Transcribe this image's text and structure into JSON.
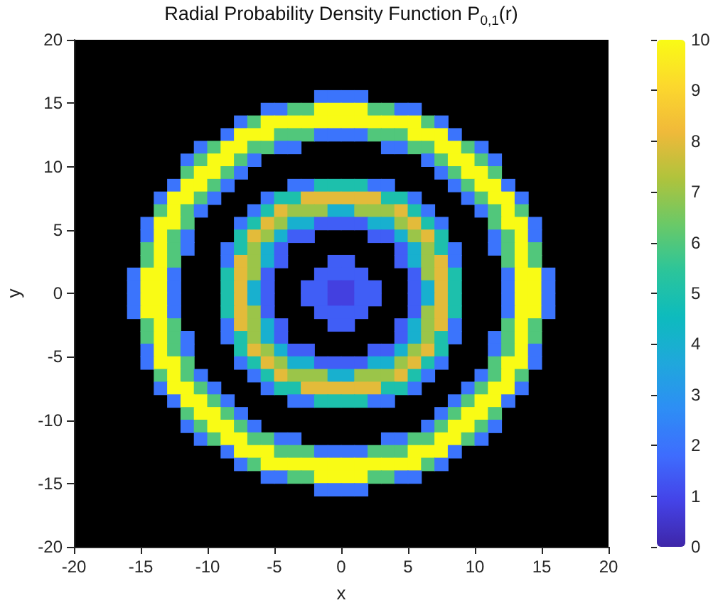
{
  "chart_data": {
    "type": "heatmap",
    "title": "Radial Probability Density Function P$_{0,1}$(r)",
    "xlabel": "x",
    "ylabel": "y",
    "x": [
      -15.5,
      -14.5,
      -13.5,
      -12.5,
      -11.5,
      -10.5,
      -9.5,
      -8.5,
      -7.5,
      -6.5,
      -5.5,
      -4.5,
      -3.5,
      -2.5,
      -1.5,
      -0.5,
      0.5,
      1.5,
      2.5,
      3.5,
      4.5,
      5.5,
      6.5,
      7.5,
      8.5,
      9.5,
      10.5,
      11.5,
      12.5,
      13.5,
      14.5,
      15.5
    ],
    "y": [
      15.5,
      14.5,
      13.5,
      12.5,
      11.5,
      10.5,
      9.5,
      8.5,
      7.5,
      6.5,
      5.5,
      4.5,
      3.5,
      2.5,
      1.5,
      0.5,
      -0.5,
      -1.5,
      -2.5,
      -3.5,
      -4.5,
      -5.5,
      -6.5,
      -7.5,
      -8.5,
      -9.5,
      -10.5,
      -11.5,
      -12.5,
      -13.5,
      -14.5,
      -15.5
    ],
    "xlim": [
      -20,
      20
    ],
    "xticks": [
      -20,
      -15,
      -10,
      -5,
      0,
      5,
      10,
      15,
      20
    ],
    "ylim": [
      -20,
      20
    ],
    "yticks": [
      -20,
      -15,
      -10,
      -5,
      0,
      5,
      10,
      15,
      20
    ],
    "clim": [
      0,
      10
    ],
    "cticks": [
      0,
      1,
      2,
      3,
      4,
      5,
      6,
      7,
      8,
      9,
      10
    ],
    "cells": [
      [
        null,
        null,
        null,
        null,
        null,
        null,
        null,
        null,
        null,
        null,
        null,
        null,
        null,
        null,
        2,
        2,
        2,
        2,
        null,
        null,
        null,
        null,
        null,
        null,
        null,
        null,
        null,
        null,
        null,
        null,
        null,
        null
      ],
      [
        null,
        null,
        null,
        null,
        null,
        null,
        null,
        null,
        null,
        null,
        2,
        2,
        6,
        6,
        10,
        10,
        10,
        10,
        6,
        6,
        2,
        2,
        null,
        null,
        null,
        null,
        null,
        null,
        null,
        null,
        null,
        null
      ],
      [
        null,
        null,
        null,
        null,
        null,
        null,
        null,
        null,
        2,
        6,
        10,
        10,
        10,
        10,
        10,
        10,
        10,
        10,
        10,
        10,
        10,
        10,
        6,
        2,
        null,
        null,
        null,
        null,
        null,
        null,
        null,
        null
      ],
      [
        null,
        null,
        null,
        null,
        null,
        null,
        null,
        2,
        10,
        10,
        10,
        6,
        6,
        6,
        2,
        2,
        2,
        2,
        6,
        6,
        6,
        10,
        10,
        10,
        2,
        null,
        null,
        null,
        null,
        null,
        null,
        null
      ],
      [
        null,
        null,
        null,
        null,
        null,
        2,
        6,
        10,
        10,
        6,
        6,
        2,
        2,
        null,
        null,
        null,
        null,
        null,
        null,
        2,
        2,
        6,
        6,
        10,
        10,
        6,
        2,
        null,
        null,
        null,
        null,
        null
      ],
      [
        null,
        null,
        null,
        null,
        2,
        6,
        10,
        10,
        6,
        2,
        null,
        null,
        null,
        null,
        null,
        null,
        null,
        null,
        null,
        null,
        null,
        null,
        2,
        6,
        10,
        10,
        6,
        2,
        null,
        null,
        null,
        null
      ],
      [
        null,
        null,
        null,
        null,
        6,
        10,
        10,
        6,
        2,
        null,
        null,
        null,
        null,
        null,
        null,
        null,
        null,
        null,
        null,
        null,
        null,
        null,
        null,
        2,
        6,
        10,
        10,
        6,
        null,
        null,
        null,
        null
      ],
      [
        null,
        null,
        null,
        2,
        10,
        10,
        6,
        2,
        null,
        null,
        null,
        null,
        2,
        2,
        5,
        5,
        5,
        5,
        2,
        2,
        null,
        null,
        null,
        null,
        2,
        6,
        10,
        10,
        2,
        null,
        null,
        null
      ],
      [
        null,
        null,
        2,
        10,
        10,
        6,
        2,
        null,
        null,
        null,
        2,
        5,
        5,
        8,
        8,
        8,
        8,
        8,
        8,
        5,
        5,
        2,
        null,
        null,
        null,
        2,
        6,
        10,
        10,
        2,
        null,
        null
      ],
      [
        null,
        null,
        6,
        10,
        6,
        2,
        null,
        null,
        null,
        2,
        5,
        8,
        7,
        7,
        7,
        4,
        4,
        7,
        7,
        7,
        8,
        5,
        2,
        null,
        null,
        null,
        2,
        6,
        10,
        6,
        null,
        null
      ],
      [
        null,
        2,
        10,
        10,
        6,
        null,
        null,
        null,
        2,
        5,
        8,
        7,
        4,
        4,
        1.5,
        1.5,
        1.5,
        1.5,
        4,
        4,
        7,
        8,
        5,
        2,
        null,
        null,
        null,
        6,
        10,
        10,
        2,
        null
      ],
      [
        null,
        2,
        10,
        6,
        2,
        null,
        null,
        null,
        5,
        8,
        7,
        4,
        1.5,
        1.5,
        null,
        null,
        null,
        null,
        1.5,
        1.5,
        4,
        7,
        8,
        5,
        null,
        null,
        null,
        2,
        6,
        10,
        2,
        null
      ],
      [
        null,
        6,
        10,
        6,
        2,
        null,
        null,
        2,
        5,
        7,
        4,
        1.5,
        null,
        null,
        null,
        null,
        null,
        null,
        null,
        null,
        1.5,
        4,
        7,
        5,
        2,
        null,
        null,
        2,
        6,
        10,
        6,
        null
      ],
      [
        null,
        6,
        10,
        6,
        null,
        null,
        null,
        2,
        8,
        7,
        4,
        1.5,
        null,
        null,
        null,
        1.5,
        1.5,
        null,
        null,
        null,
        1.5,
        4,
        7,
        8,
        2,
        null,
        null,
        null,
        6,
        10,
        6,
        null
      ],
      [
        2,
        10,
        10,
        2,
        null,
        null,
        null,
        5,
        8,
        7,
        1.5,
        null,
        null,
        null,
        1.5,
        1.5,
        1.5,
        1.5,
        null,
        null,
        null,
        1.5,
        7,
        8,
        5,
        null,
        null,
        null,
        2,
        10,
        10,
        2
      ],
      [
        2,
        10,
        10,
        2,
        null,
        null,
        null,
        5,
        8,
        4,
        1.5,
        null,
        null,
        1.5,
        1.5,
        0.8,
        0.8,
        1.5,
        1.5,
        null,
        null,
        1.5,
        4,
        8,
        5,
        null,
        null,
        null,
        2,
        10,
        10,
        2
      ],
      [
        2,
        10,
        10,
        2,
        null,
        null,
        null,
        5,
        8,
        4,
        1.5,
        null,
        null,
        1.5,
        1.5,
        0.8,
        0.8,
        1.5,
        1.5,
        null,
        null,
        1.5,
        4,
        8,
        5,
        null,
        null,
        null,
        2,
        10,
        10,
        2
      ],
      [
        2,
        10,
        10,
        2,
        null,
        null,
        null,
        5,
        8,
        7,
        1.5,
        null,
        null,
        null,
        1.5,
        1.5,
        1.5,
        1.5,
        null,
        null,
        null,
        1.5,
        7,
        8,
        5,
        null,
        null,
        null,
        2,
        10,
        10,
        2
      ],
      [
        null,
        6,
        10,
        6,
        null,
        null,
        null,
        2,
        8,
        7,
        4,
        1.5,
        null,
        null,
        null,
        1.5,
        1.5,
        null,
        null,
        null,
        1.5,
        4,
        7,
        8,
        2,
        null,
        null,
        null,
        6,
        10,
        6,
        null
      ],
      [
        null,
        6,
        10,
        6,
        2,
        null,
        null,
        2,
        5,
        7,
        4,
        1.5,
        null,
        null,
        null,
        null,
        null,
        null,
        null,
        null,
        1.5,
        4,
        7,
        5,
        2,
        null,
        null,
        2,
        6,
        10,
        6,
        null
      ],
      [
        null,
        2,
        10,
        6,
        2,
        null,
        null,
        null,
        5,
        8,
        7,
        4,
        1.5,
        1.5,
        null,
        null,
        null,
        null,
        1.5,
        1.5,
        4,
        7,
        8,
        5,
        null,
        null,
        null,
        2,
        6,
        10,
        2,
        null
      ],
      [
        null,
        2,
        10,
        10,
        6,
        null,
        null,
        null,
        2,
        5,
        8,
        7,
        4,
        4,
        1.5,
        1.5,
        1.5,
        1.5,
        4,
        4,
        7,
        8,
        5,
        2,
        null,
        null,
        null,
        6,
        10,
        10,
        2,
        null
      ],
      [
        null,
        null,
        6,
        10,
        6,
        2,
        null,
        null,
        null,
        2,
        5,
        8,
        7,
        7,
        7,
        4,
        4,
        7,
        7,
        7,
        8,
        5,
        2,
        null,
        null,
        null,
        2,
        6,
        10,
        6,
        null,
        null
      ],
      [
        null,
        null,
        2,
        10,
        10,
        6,
        2,
        null,
        null,
        null,
        2,
        5,
        5,
        8,
        8,
        8,
        8,
        8,
        8,
        5,
        5,
        2,
        null,
        null,
        null,
        2,
        6,
        10,
        10,
        2,
        null,
        null
      ],
      [
        null,
        null,
        null,
        2,
        10,
        10,
        6,
        2,
        null,
        null,
        null,
        null,
        2,
        2,
        5,
        5,
        5,
        5,
        2,
        2,
        null,
        null,
        null,
        null,
        2,
        6,
        10,
        10,
        2,
        null,
        null,
        null
      ],
      [
        null,
        null,
        null,
        null,
        6,
        10,
        10,
        6,
        2,
        null,
        null,
        null,
        null,
        null,
        null,
        null,
        null,
        null,
        null,
        null,
        null,
        null,
        null,
        2,
        6,
        10,
        10,
        6,
        null,
        null,
        null,
        null
      ],
      [
        null,
        null,
        null,
        null,
        2,
        6,
        10,
        10,
        6,
        2,
        null,
        null,
        null,
        null,
        null,
        null,
        null,
        null,
        null,
        null,
        null,
        null,
        2,
        6,
        10,
        10,
        6,
        2,
        null,
        null,
        null,
        null
      ],
      [
        null,
        null,
        null,
        null,
        null,
        2,
        6,
        10,
        10,
        6,
        6,
        2,
        2,
        null,
        null,
        null,
        null,
        null,
        null,
        2,
        2,
        6,
        6,
        10,
        10,
        6,
        2,
        null,
        null,
        null,
        null,
        null
      ],
      [
        null,
        null,
        null,
        null,
        null,
        null,
        null,
        2,
        10,
        10,
        10,
        6,
        6,
        6,
        2,
        2,
        2,
        2,
        6,
        6,
        6,
        10,
        10,
        10,
        2,
        null,
        null,
        null,
        null,
        null,
        null,
        null
      ],
      [
        null,
        null,
        null,
        null,
        null,
        null,
        null,
        null,
        2,
        6,
        10,
        10,
        10,
        10,
        10,
        10,
        10,
        10,
        10,
        10,
        10,
        10,
        6,
        2,
        null,
        null,
        null,
        null,
        null,
        null,
        null,
        null
      ],
      [
        null,
        null,
        null,
        null,
        null,
        null,
        null,
        null,
        null,
        null,
        2,
        2,
        6,
        6,
        10,
        10,
        10,
        10,
        6,
        6,
        2,
        2,
        null,
        null,
        null,
        null,
        null,
        null,
        null,
        null,
        null,
        null
      ],
      [
        null,
        null,
        null,
        null,
        null,
        null,
        null,
        null,
        null,
        null,
        null,
        null,
        null,
        null,
        2,
        2,
        2,
        2,
        null,
        null,
        null,
        null,
        null,
        null,
        null,
        null,
        null,
        null,
        null,
        null,
        null,
        null
      ]
    ]
  }
}
